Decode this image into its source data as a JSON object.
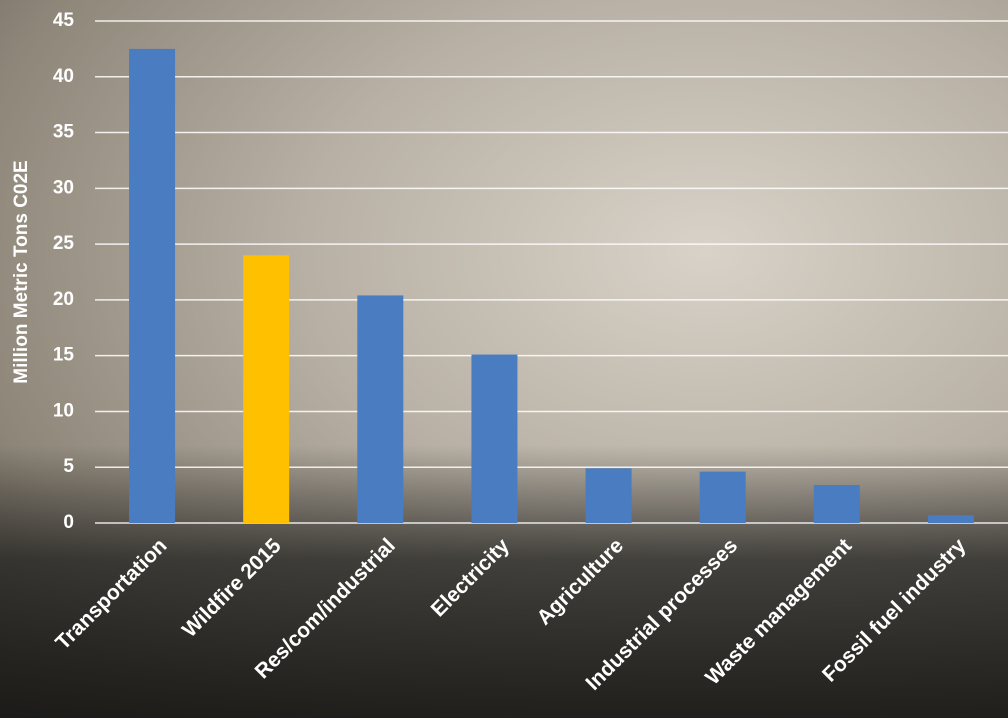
{
  "chart_data": {
    "type": "bar",
    "y_label": "Million Metric Tons C02E",
    "categories": [
      "Transportation",
      "Wildfire 2015",
      "Res/com/industrial",
      "Electricity",
      "Agriculture",
      "Industrial processes",
      "Waste management",
      "Fossil fuel industry"
    ],
    "values": [
      42.5,
      24,
      20.4,
      15.1,
      4.9,
      4.6,
      3.4,
      0.7
    ],
    "colors": [
      "#4a7cc1",
      "#ffc000",
      "#4a7cc1",
      "#4a7cc1",
      "#4a7cc1",
      "#4a7cc1",
      "#4a7cc1",
      "#4a7cc1"
    ],
    "ylim": [
      0,
      45
    ],
    "yticks": [
      0,
      5,
      10,
      15,
      20,
      25,
      30,
      35,
      40,
      45
    ],
    "grid": true
  }
}
